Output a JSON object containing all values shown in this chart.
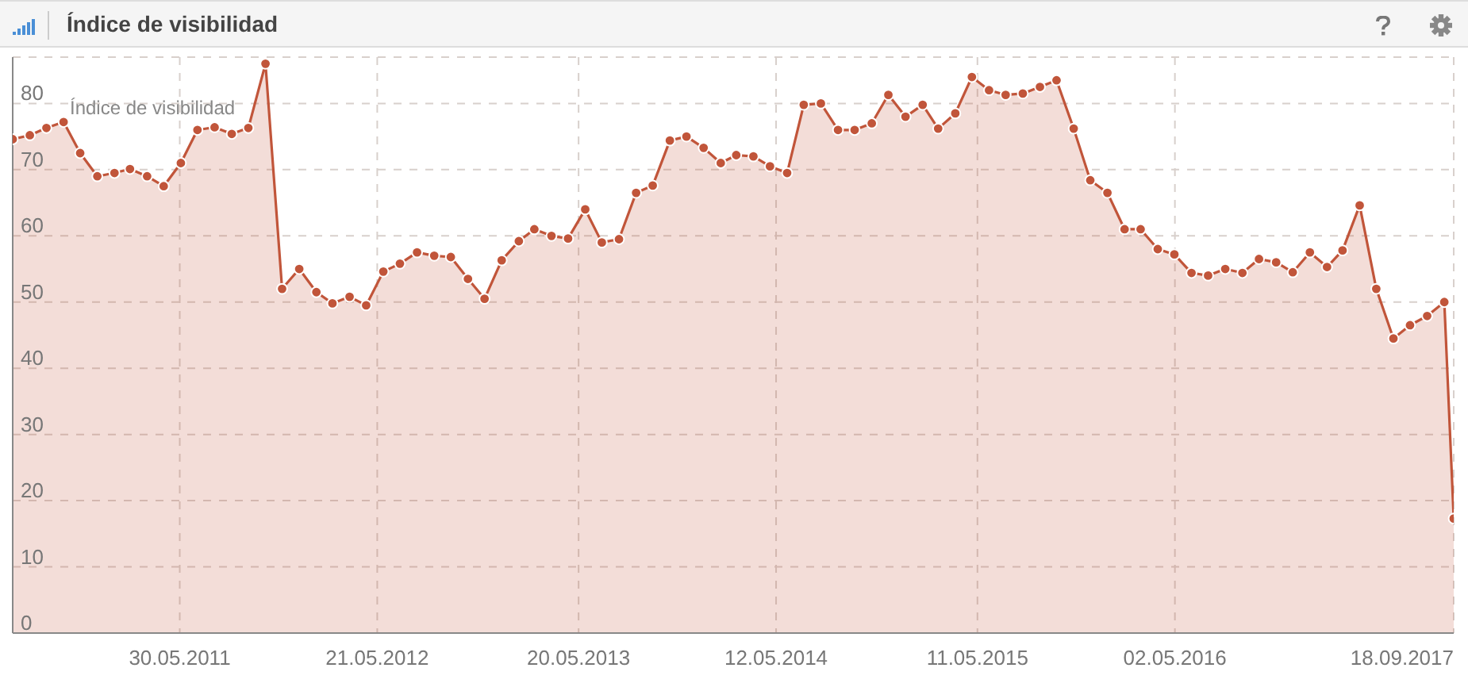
{
  "chart_data": {
    "type": "area",
    "title": "Índice de visibilidad",
    "legend_title": "Índice de visibilidad",
    "x": [
      "2010-08",
      "2010-09",
      "2010-10",
      "2010-11",
      "2010-12",
      "2011-01",
      "2011-02",
      "2011-03",
      "2011-04",
      "2011-05",
      "2011-06",
      "2011-07",
      "2011-08",
      "2011-09",
      "2011-10",
      "2011-11",
      "2011-12",
      "2012-01",
      "2012-02",
      "2012-03",
      "2012-04",
      "2012-05",
      "2012-06",
      "2012-07",
      "2012-08",
      "2012-09",
      "2012-10",
      "2012-11",
      "2012-12",
      "2013-01",
      "2013-02",
      "2013-03",
      "2013-04",
      "2013-05",
      "2013-06",
      "2013-07",
      "2013-08",
      "2013-09",
      "2013-10",
      "2013-11",
      "2013-12",
      "2014-01",
      "2014-02",
      "2014-03",
      "2014-04",
      "2014-05",
      "2014-06",
      "2014-07",
      "2014-08",
      "2014-09",
      "2014-10",
      "2014-11",
      "2014-12",
      "2015-01",
      "2015-02",
      "2015-03",
      "2015-04",
      "2015-05",
      "2015-06",
      "2015-07",
      "2015-08",
      "2015-09",
      "2015-10",
      "2015-11",
      "2015-12",
      "2016-01",
      "2016-02",
      "2016-03",
      "2016-04",
      "2016-05",
      "2016-06",
      "2016-07",
      "2016-08",
      "2016-09",
      "2016-10",
      "2016-11",
      "2016-12",
      "2017-01",
      "2017-02",
      "2017-03",
      "2017-04",
      "2017-05",
      "2017-06",
      "2017-07",
      "2017-08",
      "2017-09",
      "2017-09-18"
    ],
    "series": [
      {
        "color": "#c1553a",
        "values": [
          74.6,
          75.2,
          76.3,
          77.2,
          72.5,
          69,
          69.5,
          70.1,
          69,
          67.5,
          71,
          76,
          76.4,
          75.4,
          76.3,
          86,
          52,
          55,
          51.5,
          49.8,
          50.8,
          49.5,
          54.6,
          55.8,
          57.5,
          57,
          56.8,
          53.5,
          50.5,
          56.3,
          59.2,
          61,
          60,
          59.6,
          64,
          59,
          59.5,
          66.5,
          67.6,
          74.4,
          75,
          73.3,
          71,
          72.2,
          72,
          70.5,
          69.5,
          79.8,
          80,
          76,
          76,
          77,
          81.3,
          78,
          79.8,
          76.2,
          78.5,
          84,
          82,
          81.3,
          81.5,
          82.5,
          83.5,
          76.2,
          68.4,
          66.5,
          61,
          61,
          58,
          57.2,
          54.4,
          54,
          55,
          54.4,
          56.5,
          56,
          54.5,
          57.5,
          55.3,
          57.8,
          64.6,
          52,
          44.5,
          46.5,
          47.9,
          50,
          17.3
        ]
      }
    ],
    "xlim": [
      "2010-08-01",
      "2017-09-18"
    ],
    "xticks": [
      {
        "value": "2011-05-30",
        "label": "30.05.2011"
      },
      {
        "value": "2012-05-21",
        "label": "21.05.2012"
      },
      {
        "value": "2013-05-20",
        "label": "20.05.2013"
      },
      {
        "value": "2014-05-12",
        "label": "12.05.2014"
      },
      {
        "value": "2015-05-11",
        "label": "11.05.2015"
      },
      {
        "value": "2016-05-02",
        "label": "02.05.2016"
      },
      {
        "value": "2017-09-18",
        "label": "18.09.2017"
      }
    ],
    "ylim": [
      0,
      87
    ],
    "yticks": [
      0,
      10,
      20,
      30,
      40,
      50,
      60,
      70,
      80
    ],
    "grid": true,
    "marker": "circle",
    "line_style": "solid"
  }
}
